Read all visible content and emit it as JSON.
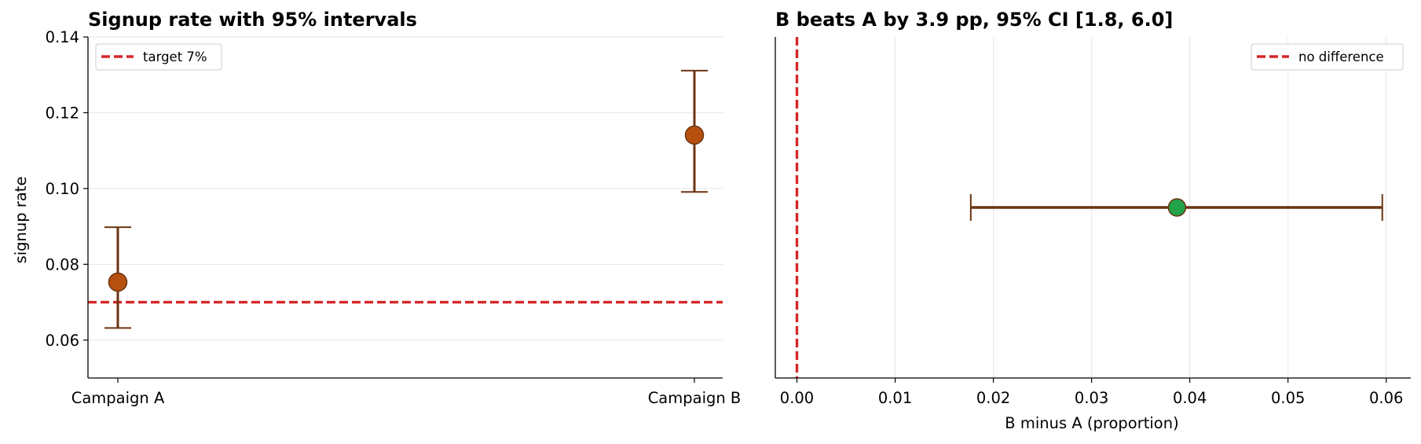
{
  "chart_data": [
    {
      "type": "scatter",
      "title": "Signup rate with 95% intervals",
      "xlabel": "",
      "ylabel": "signup rate",
      "categories": [
        "Campaign A",
        "Campaign B"
      ],
      "points": [
        {
          "category": "Campaign A",
          "value": 0.0753,
          "ci_low": 0.0632,
          "ci_high": 0.0898
        },
        {
          "category": "Campaign B",
          "value": 0.1141,
          "ci_low": 0.0991,
          "ci_high": 0.1311
        }
      ],
      "ylim": [
        0.05,
        0.14
      ],
      "yticks": [
        0.06,
        0.08,
        0.1,
        0.12,
        0.14
      ],
      "ytick_labels": [
        "0.06",
        "0.08",
        "0.10",
        "0.12",
        "0.14"
      ],
      "reference_line": {
        "orientation": "horizontal",
        "value": 0.07,
        "label": "target 7%",
        "color": "#d62728"
      },
      "point_color": "#b5500f",
      "errorbar_color": "#6b3410",
      "grid": true,
      "legend_placement": "upper-left"
    },
    {
      "type": "scatter",
      "title": "B beats A by 3.9 pp, 95% CI [1.8, 6.0]",
      "xlabel": "B minus A (proportion)",
      "ylabel": "",
      "points": [
        {
          "value": 0.0387,
          "ci_low": 0.0177,
          "ci_high": 0.0596
        }
      ],
      "xlim": [
        -0.0022,
        0.0625
      ],
      "xticks": [
        0.0,
        0.01,
        0.02,
        0.03,
        0.04,
        0.05,
        0.06
      ],
      "xtick_labels": [
        "0.00",
        "0.01",
        "0.02",
        "0.03",
        "0.04",
        "0.05",
        "0.06"
      ],
      "reference_line": {
        "orientation": "vertical",
        "value": 0.0,
        "label": "no difference",
        "color": "#d62728"
      },
      "point_color": "#22a249",
      "errorbar_color": "#6b3410",
      "grid": true,
      "legend_placement": "upper-right"
    }
  ]
}
